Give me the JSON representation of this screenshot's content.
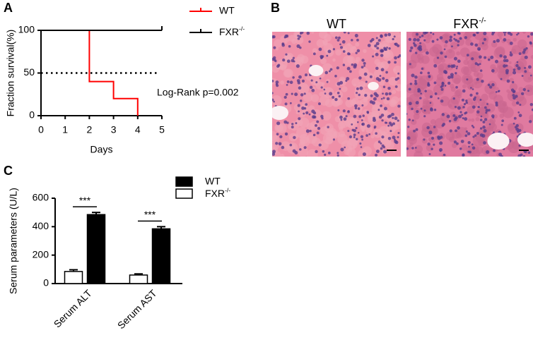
{
  "panel_labels": [
    "A",
    "B",
    "C"
  ],
  "histology": {
    "images": [
      {
        "title": "WT"
      },
      {
        "title": "FXR-/-"
      }
    ]
  },
  "chart_data": [
    {
      "type": "line",
      "step": true,
      "xlabel": "Days",
      "ylabel": "Fraction survival(%)",
      "xlim": [
        0,
        5
      ],
      "xticks": [
        0,
        1,
        2,
        3,
        4,
        5
      ],
      "ylim": [
        0,
        100
      ],
      "yticks": [
        0,
        50,
        100
      ],
      "reference_line": 50,
      "annotation": "Log-Rank p=0.002",
      "series": [
        {
          "name": "WT",
          "color": "#ff0000",
          "x": [
            0,
            2,
            3,
            4
          ],
          "values": [
            100,
            40,
            20,
            0
          ]
        },
        {
          "name": "FXR-/-",
          "color": "#000000",
          "x": [
            0,
            5
          ],
          "values": [
            100,
            100
          ]
        }
      ]
    },
    {
      "type": "bar",
      "ylabel": "Serum parameters (U/L)",
      "categories": [
        "Serum ALT",
        "Serum AST"
      ],
      "ylim": [
        0,
        600
      ],
      "yticks": [
        0,
        200,
        400,
        600
      ],
      "significance": [
        "***",
        "***"
      ],
      "series": [
        {
          "name": "WT",
          "color": "#000000",
          "values": [
            485,
            385
          ],
          "errors": [
            15,
            15
          ]
        },
        {
          "name": "FXR-/-",
          "color": "#ffffff",
          "values": [
            85,
            60
          ],
          "errors": [
            12,
            8
          ]
        }
      ]
    }
  ]
}
